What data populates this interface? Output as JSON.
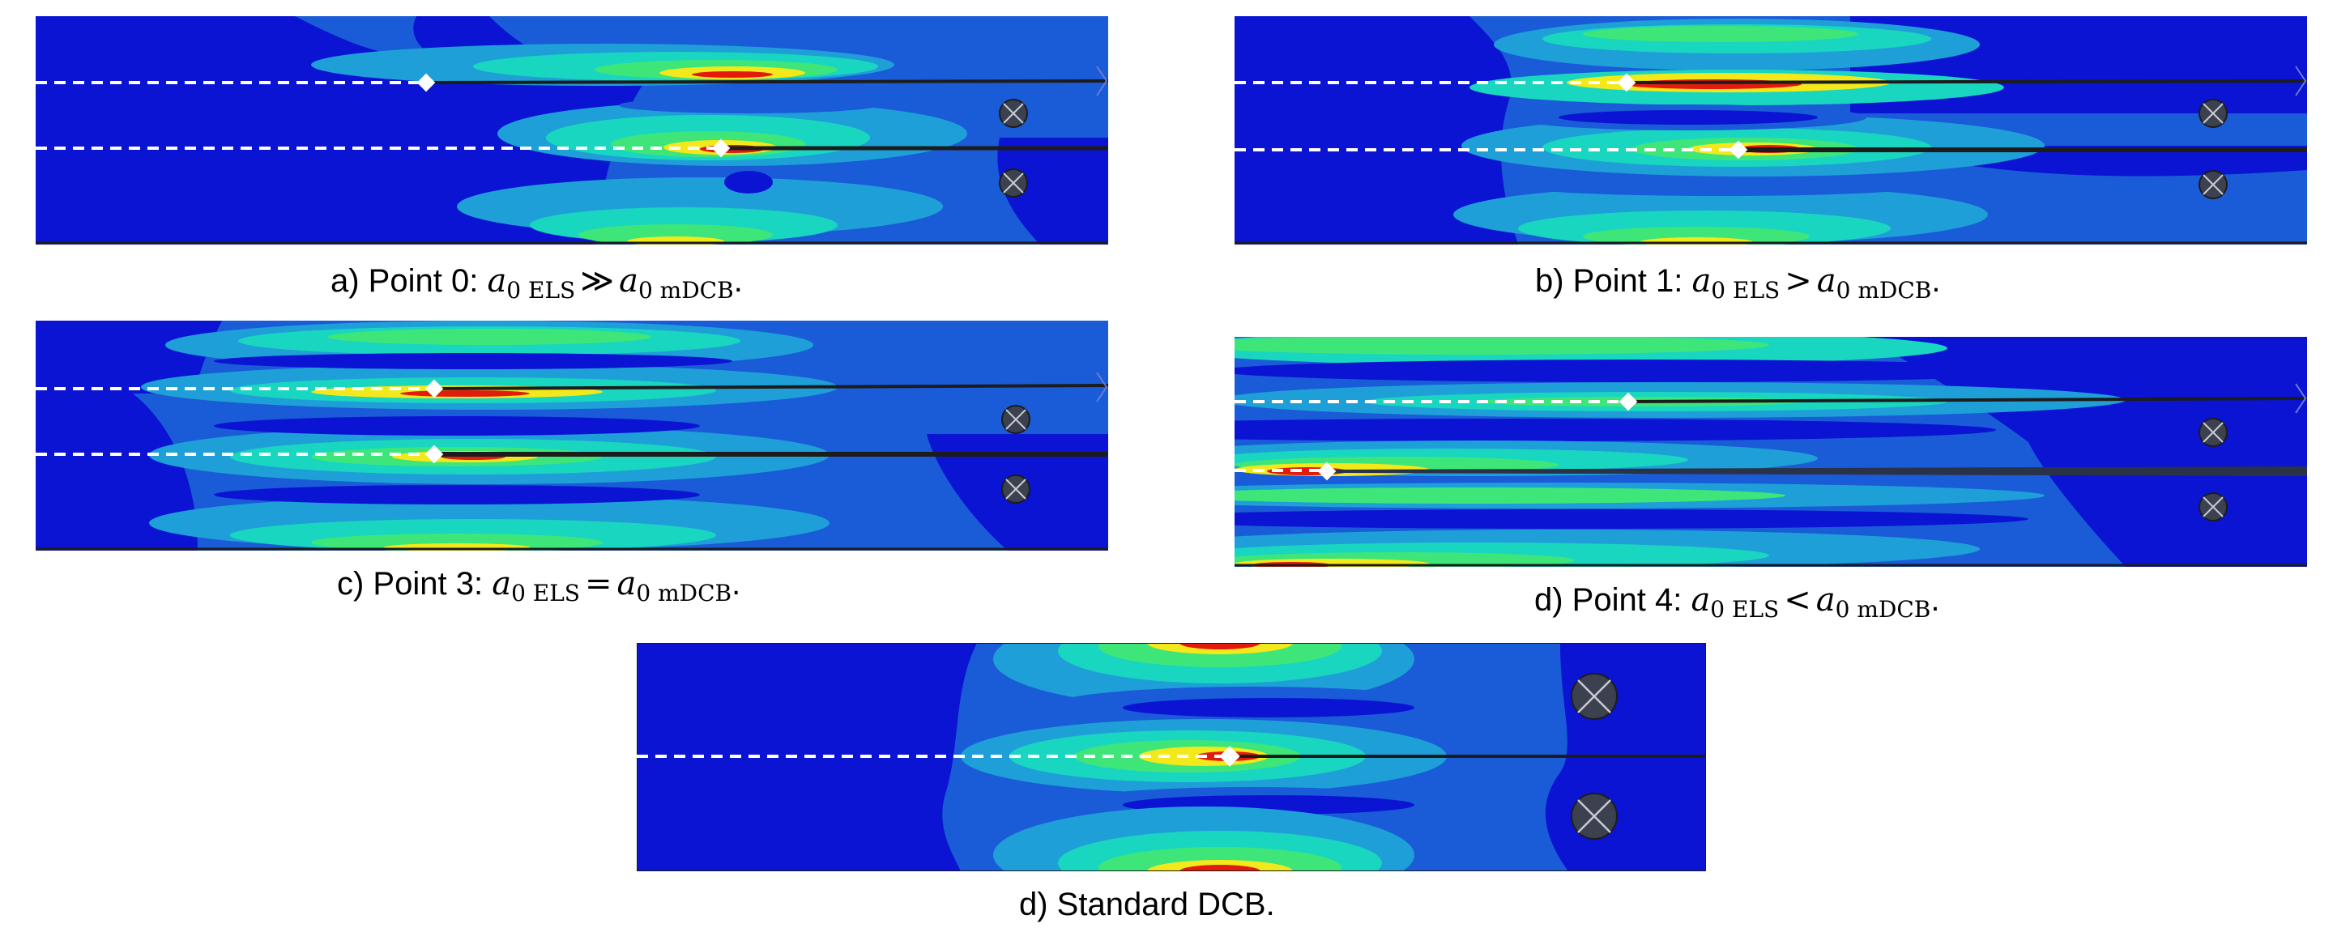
{
  "panels": [
    {
      "id": "a",
      "caption": {
        "prefix": "a) Point 0: ",
        "lhs_symbol": "a",
        "lhs_sub": "0 ELS",
        "relation": "≫",
        "rhs_symbol": "a",
        "rhs_sub": "0 mDCB",
        "suffix": "."
      }
    },
    {
      "id": "b",
      "caption": {
        "prefix": "b) Point 1: ",
        "lhs_symbol": "a",
        "lhs_sub": "0 ELS",
        "relation": ">",
        "rhs_symbol": "a",
        "rhs_sub": "0 mDCB",
        "suffix": "."
      }
    },
    {
      "id": "c",
      "caption": {
        "prefix": "c) Point 3: ",
        "lhs_symbol": "a",
        "lhs_sub": "0 ELS",
        "relation": "=",
        "rhs_symbol": "a",
        "rhs_sub": "0 mDCB",
        "suffix": "."
      }
    },
    {
      "id": "d4",
      "caption": {
        "prefix": "d) Point 4: ",
        "lhs_symbol": "a",
        "lhs_sub": "0 ELS",
        "relation": "<",
        "rhs_symbol": "a",
        "rhs_sub": "0 mDCB",
        "suffix": "."
      }
    },
    {
      "id": "dcb",
      "caption": {
        "prefix": "d) Standard DCB.",
        "lhs_symbol": "",
        "lhs_sub": "",
        "relation": "",
        "rhs_symbol": "",
        "rhs_sub": "",
        "suffix": ""
      }
    }
  ],
  "colors": {
    "background_field": "#0a14d2",
    "contour_ramp": [
      "#0a14d2",
      "#1a5bd8",
      "#1e9fd8",
      "#19d6c0",
      "#3ee67a",
      "#a8ef2a",
      "#f2e81a",
      "#ff8a10",
      "#e21b0c"
    ],
    "crack_line": "#1c1c1c",
    "dashed_line": "#ffffff",
    "crack_tip_marker": "#ffffff",
    "pin": "#3c4150"
  }
}
